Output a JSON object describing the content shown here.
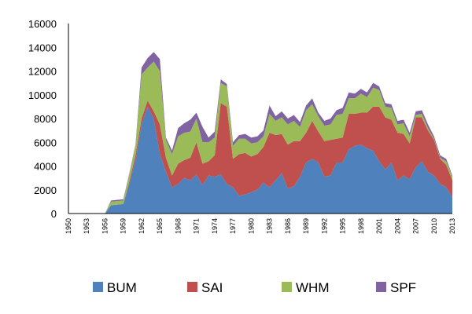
{
  "chart_data": {
    "type": "area",
    "stacked": true,
    "xlim": [
      1950,
      2013
    ],
    "ylim": [
      0,
      16000
    ],
    "yticks": [
      0,
      2000,
      4000,
      6000,
      8000,
      10000,
      12000,
      14000,
      16000
    ],
    "xticks": [
      1950,
      1953,
      1956,
      1959,
      1962,
      1965,
      1968,
      1971,
      1974,
      1977,
      1980,
      1983,
      1986,
      1989,
      1992,
      1995,
      1998,
      2001,
      2004,
      2007,
      2010,
      2013
    ],
    "legend_position": "bottom",
    "grid": false,
    "x": [
      1950,
      1951,
      1952,
      1953,
      1954,
      1955,
      1956,
      1957,
      1958,
      1959,
      1960,
      1961,
      1962,
      1963,
      1964,
      1965,
      1966,
      1967,
      1968,
      1969,
      1970,
      1971,
      1972,
      1973,
      1974,
      1975,
      1976,
      1977,
      1978,
      1979,
      1980,
      1981,
      1982,
      1983,
      1984,
      1985,
      1986,
      1987,
      1988,
      1989,
      1990,
      1991,
      1992,
      1993,
      1994,
      1995,
      1996,
      1997,
      1998,
      1999,
      2000,
      2001,
      2002,
      2003,
      2004,
      2005,
      2006,
      2007,
      2008,
      2009,
      2010,
      2011,
      2012,
      2013
    ],
    "series": [
      {
        "name": "BUM",
        "color": "#4f81bd",
        "values": [
          0,
          0,
          0,
          0,
          0,
          0,
          0,
          700,
          750,
          800,
          2500,
          4500,
          7500,
          9000,
          8000,
          5000,
          3500,
          2200,
          2500,
          3000,
          2800,
          3300,
          2400,
          3200,
          3100,
          3300,
          2500,
          2200,
          1500,
          1600,
          1800,
          2000,
          2600,
          2200,
          2800,
          3400,
          2100,
          2300,
          3100,
          4300,
          4600,
          4300,
          3100,
          3200,
          4300,
          4300,
          5400,
          5700,
          5800,
          5500,
          5300,
          4400,
          3700,
          4300,
          2800,
          3200,
          2900,
          3900,
          4400,
          3500,
          3200,
          2500,
          2200,
          1400
        ]
      },
      {
        "name": "SAI",
        "color": "#c0504d",
        "values": [
          0,
          0,
          0,
          0,
          0,
          0,
          0,
          0,
          0,
          0,
          200,
          400,
          500,
          500,
          600,
          2500,
          1200,
          1000,
          1700,
          1500,
          1900,
          2700,
          1800,
          1200,
          1800,
          6000,
          6500,
          2400,
          3500,
          3500,
          3000,
          3000,
          3000,
          4600,
          3800,
          3300,
          3700,
          3800,
          3000,
          2500,
          3200,
          2600,
          3000,
          3000,
          2000,
          2100,
          3000,
          2700,
          2700,
          3000,
          3700,
          4600,
          4400,
          3600,
          4000,
          3500,
          3000,
          4200,
          3700,
          3500,
          3000,
          2100,
          1900,
          1400
        ]
      },
      {
        "name": "WHM",
        "color": "#9bbb59",
        "values": [
          0,
          0,
          0,
          0,
          0,
          0,
          0,
          300,
          300,
          300,
          600,
          800,
          3700,
          2800,
          4200,
          4500,
          1500,
          1800,
          2300,
          2300,
          2200,
          2000,
          1800,
          1600,
          1500,
          1700,
          1700,
          1100,
          1300,
          1200,
          1100,
          1000,
          900,
          1600,
          1200,
          1400,
          1700,
          1700,
          1200,
          1900,
          1400,
          1300,
          1300,
          1300,
          2000,
          2000,
          1300,
          1300,
          1600,
          1300,
          1600,
          1400,
          900,
          1000,
          700,
          900,
          600,
          200,
          300,
          200,
          100,
          100,
          300,
          300
        ]
      },
      {
        "name": "SPF",
        "color": "#8064a2",
        "values": [
          0,
          0,
          0,
          0,
          0,
          0,
          0,
          100,
          100,
          100,
          100,
          100,
          600,
          800,
          800,
          1000,
          200,
          300,
          700,
          800,
          1000,
          500,
          1300,
          400,
          500,
          300,
          200,
          300,
          300,
          400,
          500,
          500,
          500,
          700,
          400,
          500,
          500,
          500,
          400,
          400,
          500,
          300,
          400,
          500,
          400,
          500,
          500,
          400,
          400,
          400,
          400,
          300,
          300,
          300,
          300,
          300,
          300,
          300,
          300,
          300,
          200,
          200,
          200,
          100
        ]
      }
    ]
  }
}
